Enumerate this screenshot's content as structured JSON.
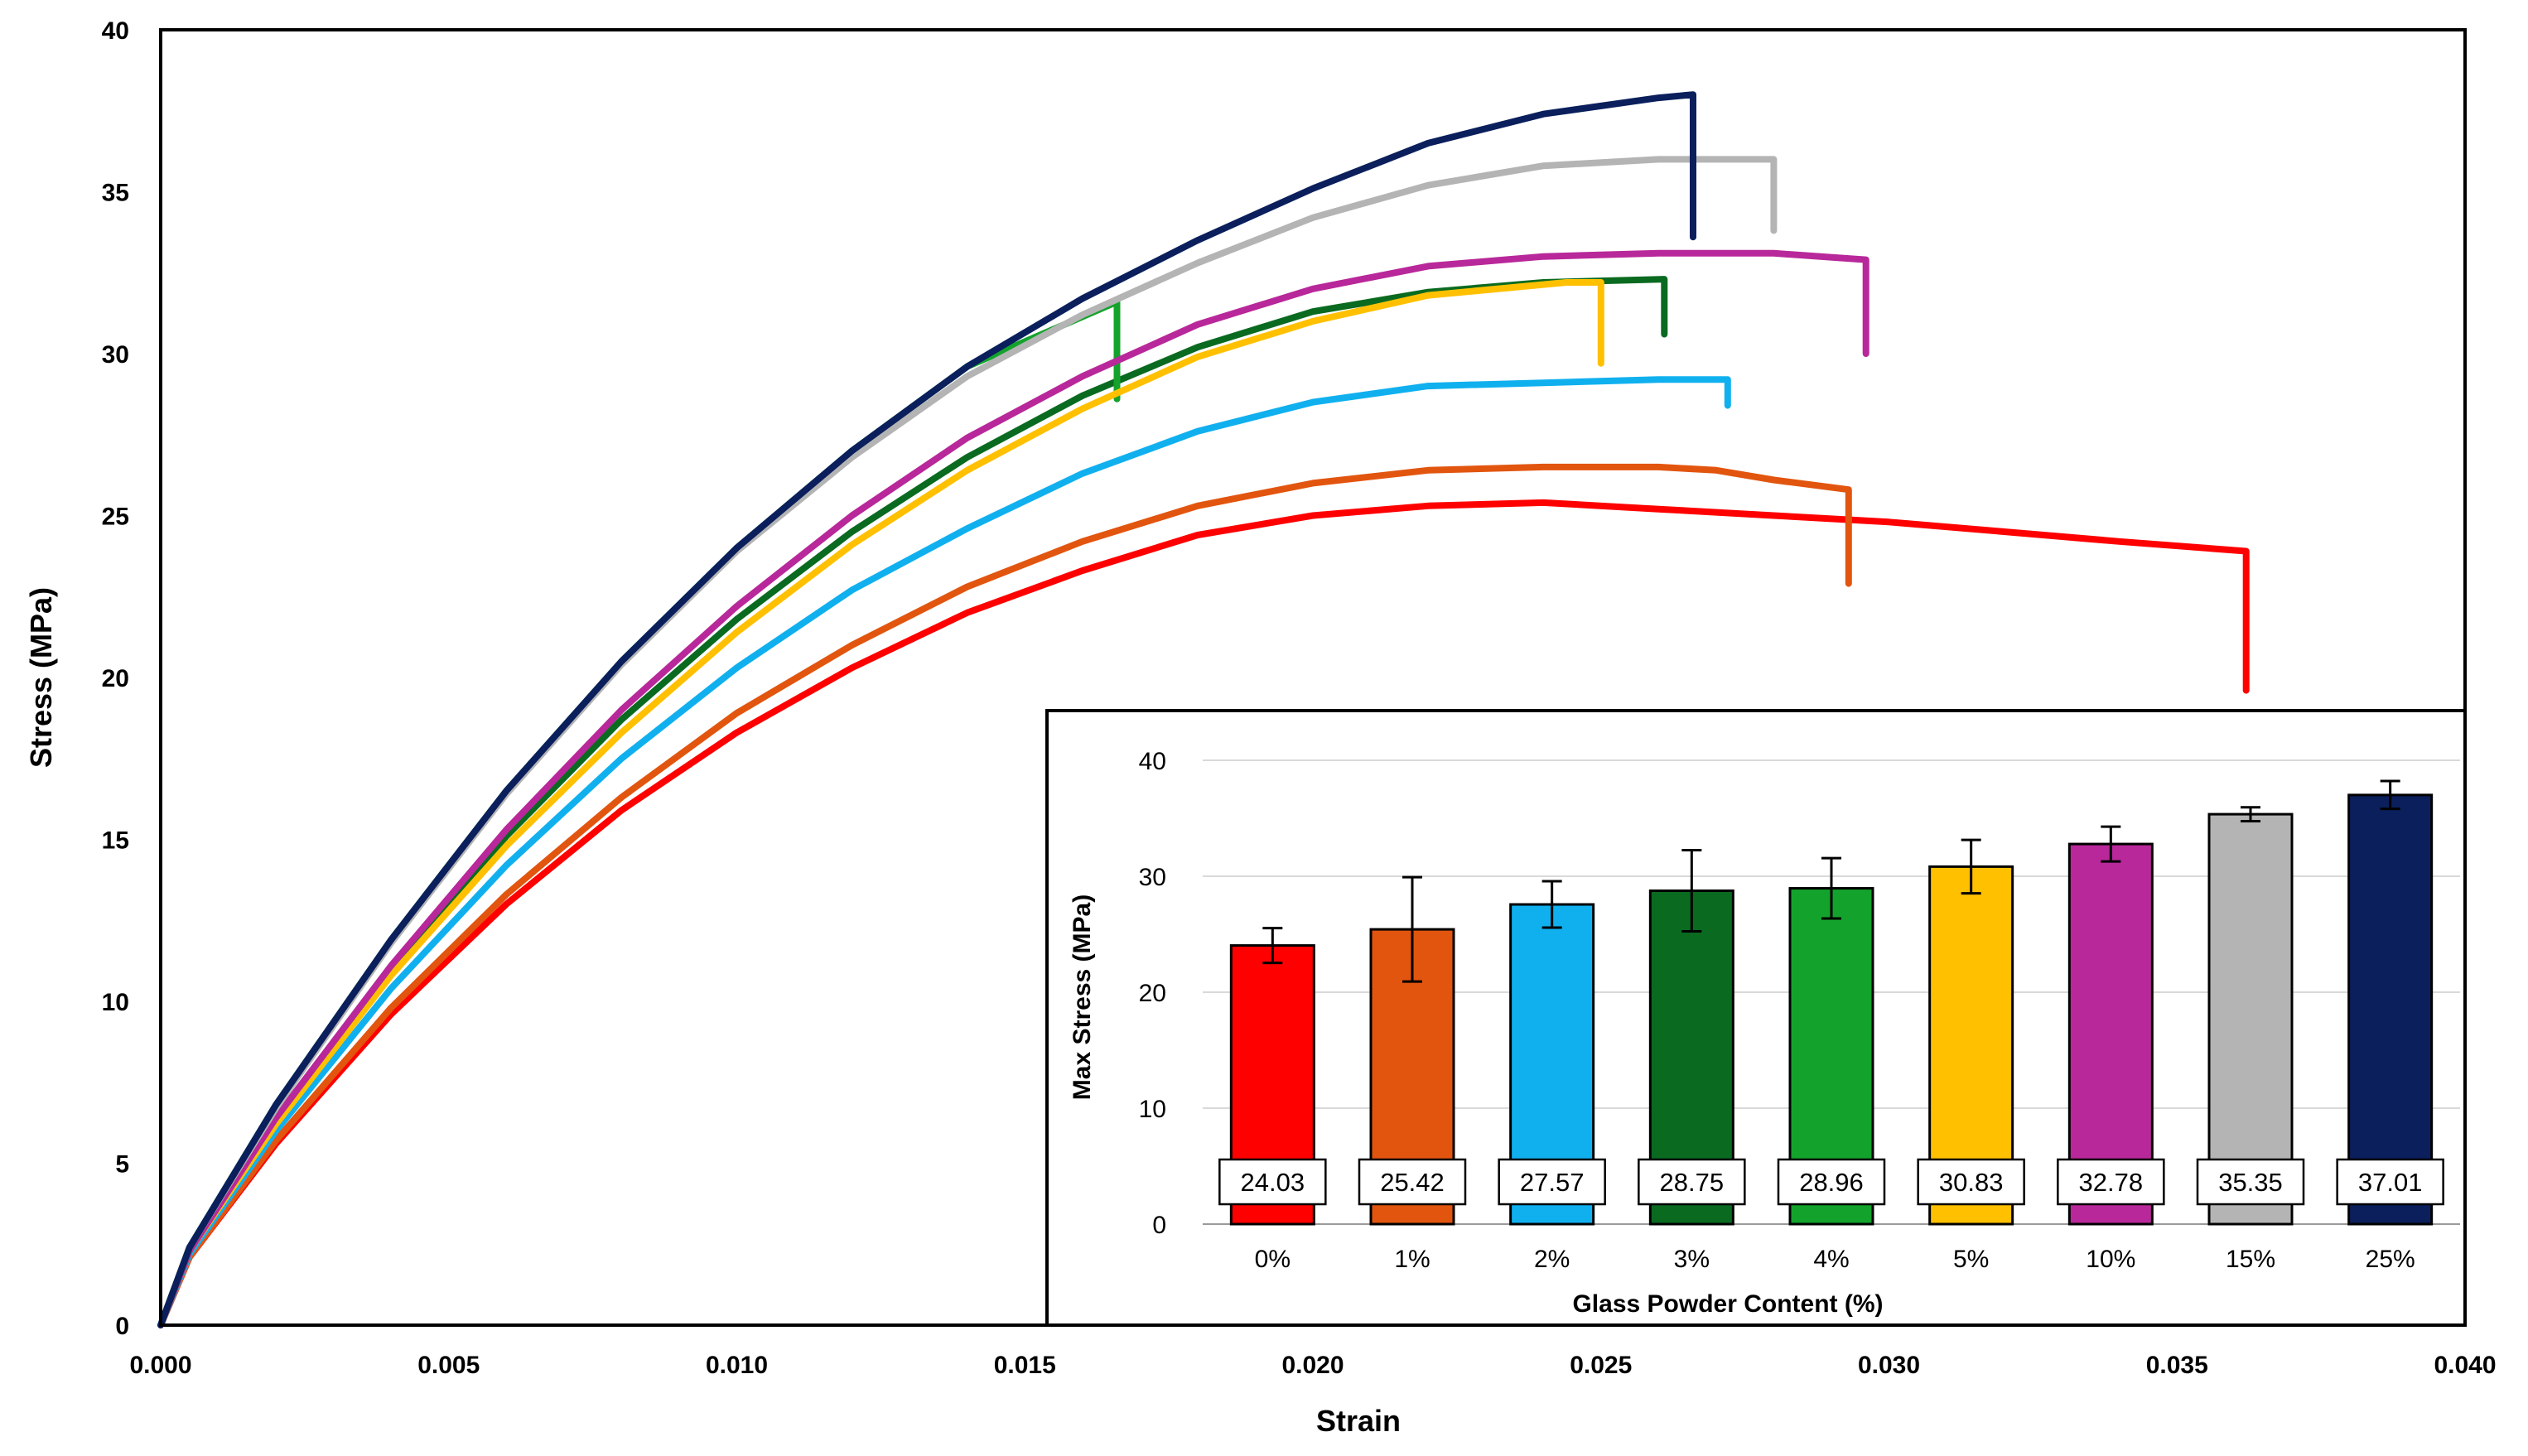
{
  "chart_data": [
    {
      "type": "line",
      "title": "",
      "xlabel": "Strain",
      "ylabel": "Stress (MPa)",
      "xlim": [
        0,
        0.04
      ],
      "ylim": [
        0,
        40
      ],
      "x_ticks": [
        "0.000",
        "0.005",
        "0.010",
        "0.015",
        "0.020",
        "0.025",
        "0.030",
        "0.035",
        "0.040"
      ],
      "y_ticks": [
        "0",
        "5",
        "10",
        "15",
        "20",
        "25",
        "30",
        "35",
        "40"
      ],
      "grid": false,
      "legend": "none",
      "series": [
        {
          "name": "0%",
          "color": "#ff0000",
          "points": [
            [
              0,
              0
            ],
            [
              0.0005,
              2.1
            ],
            [
              0.002,
              5.6
            ],
            [
              0.004,
              9.6
            ],
            [
              0.006,
              13.0
            ],
            [
              0.008,
              15.9
            ],
            [
              0.01,
              18.3
            ],
            [
              0.012,
              20.3
            ],
            [
              0.014,
              22.0
            ],
            [
              0.016,
              23.3
            ],
            [
              0.018,
              24.4
            ],
            [
              0.02,
              25.0
            ],
            [
              0.022,
              25.3
            ],
            [
              0.024,
              25.4
            ],
            [
              0.026,
              25.2
            ],
            [
              0.028,
              25.0
            ],
            [
              0.03,
              24.8
            ],
            [
              0.032,
              24.5
            ],
            [
              0.034,
              24.2
            ],
            [
              0.0362,
              23.9
            ],
            [
              0.0362,
              19.6
            ]
          ]
        },
        {
          "name": "1%",
          "color": "#e2550f",
          "points": [
            [
              0,
              0
            ],
            [
              0.0005,
              2.1
            ],
            [
              0.002,
              5.7
            ],
            [
              0.004,
              9.8
            ],
            [
              0.006,
              13.3
            ],
            [
              0.008,
              16.3
            ],
            [
              0.01,
              18.9
            ],
            [
              0.012,
              21.0
            ],
            [
              0.014,
              22.8
            ],
            [
              0.016,
              24.2
            ],
            [
              0.018,
              25.3
            ],
            [
              0.02,
              26.0
            ],
            [
              0.022,
              26.4
            ],
            [
              0.024,
              26.5
            ],
            [
              0.026,
              26.5
            ],
            [
              0.027,
              26.4
            ],
            [
              0.028,
              26.1
            ],
            [
              0.0293,
              25.8
            ],
            [
              0.0293,
              22.9
            ]
          ]
        },
        {
          "name": "2%",
          "color": "#10b0ef",
          "points": [
            [
              0,
              0
            ],
            [
              0.0005,
              2.2
            ],
            [
              0.002,
              6.0
            ],
            [
              0.004,
              10.4
            ],
            [
              0.006,
              14.2
            ],
            [
              0.008,
              17.5
            ],
            [
              0.01,
              20.3
            ],
            [
              0.012,
              22.7
            ],
            [
              0.014,
              24.6
            ],
            [
              0.016,
              26.3
            ],
            [
              0.018,
              27.6
            ],
            [
              0.02,
              28.5
            ],
            [
              0.022,
              29.0
            ],
            [
              0.024,
              29.1
            ],
            [
              0.026,
              29.2
            ],
            [
              0.0272,
              29.2
            ],
            [
              0.0272,
              28.4
            ]
          ]
        },
        {
          "name": "3%",
          "color": "#0a6a20",
          "points": [
            [
              0,
              0
            ],
            [
              0.0005,
              2.3
            ],
            [
              0.002,
              6.3
            ],
            [
              0.004,
              11.0
            ],
            [
              0.006,
              15.1
            ],
            [
              0.008,
              18.7
            ],
            [
              0.01,
              21.8
            ],
            [
              0.012,
              24.5
            ],
            [
              0.014,
              26.8
            ],
            [
              0.016,
              28.7
            ],
            [
              0.018,
              30.2
            ],
            [
              0.02,
              31.3
            ],
            [
              0.022,
              31.9
            ],
            [
              0.024,
              32.2
            ],
            [
              0.0261,
              32.3
            ],
            [
              0.0261,
              30.6
            ]
          ]
        },
        {
          "name": "4%",
          "color": "#13a32c",
          "points": [
            [
              0,
              0
            ],
            [
              0.0005,
              2.4
            ],
            [
              0.002,
              6.8
            ],
            [
              0.004,
              11.9
            ],
            [
              0.006,
              16.5
            ],
            [
              0.008,
              20.5
            ],
            [
              0.01,
              24.0
            ],
            [
              0.012,
              27.0
            ],
            [
              0.014,
              29.6
            ],
            [
              0.0166,
              31.6
            ],
            [
              0.0166,
              28.6
            ]
          ]
        },
        {
          "name": "5%",
          "color": "#ffc000",
          "points": [
            [
              0,
              0
            ],
            [
              0.0005,
              2.3
            ],
            [
              0.002,
              6.2
            ],
            [
              0.004,
              10.8
            ],
            [
              0.006,
              14.8
            ],
            [
              0.008,
              18.3
            ],
            [
              0.01,
              21.4
            ],
            [
              0.012,
              24.1
            ],
            [
              0.014,
              26.4
            ],
            [
              0.016,
              28.3
            ],
            [
              0.018,
              29.9
            ],
            [
              0.02,
              31.0
            ],
            [
              0.022,
              31.8
            ],
            [
              0.0244,
              32.2
            ],
            [
              0.025,
              32.2
            ],
            [
              0.025,
              29.7
            ]
          ]
        },
        {
          "name": "10%",
          "color": "#b8289a",
          "points": [
            [
              0,
              0
            ],
            [
              0.0005,
              2.3
            ],
            [
              0.002,
              6.4
            ],
            [
              0.004,
              11.1
            ],
            [
              0.006,
              15.3
            ],
            [
              0.008,
              19.0
            ],
            [
              0.01,
              22.2
            ],
            [
              0.012,
              25.0
            ],
            [
              0.014,
              27.4
            ],
            [
              0.016,
              29.3
            ],
            [
              0.018,
              30.9
            ],
            [
              0.02,
              32.0
            ],
            [
              0.022,
              32.7
            ],
            [
              0.024,
              33.0
            ],
            [
              0.026,
              33.1
            ],
            [
              0.028,
              33.1
            ],
            [
              0.0296,
              32.9
            ],
            [
              0.0296,
              30.0
            ]
          ]
        },
        {
          "name": "15%",
          "color": "#b4b4b4",
          "points": [
            [
              0,
              0
            ],
            [
              0.0005,
              2.4
            ],
            [
              0.002,
              6.7
            ],
            [
              0.004,
              11.8
            ],
            [
              0.006,
              16.4
            ],
            [
              0.008,
              20.4
            ],
            [
              0.01,
              23.9
            ],
            [
              0.012,
              26.8
            ],
            [
              0.014,
              29.3
            ],
            [
              0.016,
              31.2
            ],
            [
              0.018,
              32.8
            ],
            [
              0.02,
              34.2
            ],
            [
              0.022,
              35.2
            ],
            [
              0.024,
              35.8
            ],
            [
              0.026,
              36.0
            ],
            [
              0.028,
              36.0
            ],
            [
              0.028,
              33.8
            ]
          ]
        },
        {
          "name": "25%",
          "color": "#0a1f5c",
          "points": [
            [
              0,
              0
            ],
            [
              0.0005,
              2.4
            ],
            [
              0.002,
              6.8
            ],
            [
              0.004,
              11.9
            ],
            [
              0.006,
              16.5
            ],
            [
              0.008,
              20.5
            ],
            [
              0.01,
              24.0
            ],
            [
              0.012,
              27.0
            ],
            [
              0.014,
              29.6
            ],
            [
              0.016,
              31.7
            ],
            [
              0.018,
              33.5
            ],
            [
              0.02,
              35.1
            ],
            [
              0.022,
              36.5
            ],
            [
              0.024,
              37.4
            ],
            [
              0.026,
              37.9
            ],
            [
              0.0266,
              38.0
            ],
            [
              0.0266,
              33.6
            ]
          ]
        }
      ]
    },
    {
      "type": "bar",
      "title": "",
      "xlabel": "Glass Powder Content (%)",
      "ylabel": "Max Stress (MPa)",
      "ylim": [
        0,
        40
      ],
      "y_ticks": [
        "0",
        "10",
        "20",
        "30",
        "40"
      ],
      "grid": true,
      "legend": "none",
      "categories": [
        "0%",
        "1%",
        "2%",
        "3%",
        "4%",
        "5%",
        "10%",
        "15%",
        "25%"
      ],
      "values": [
        24.03,
        25.42,
        27.57,
        28.75,
        28.96,
        30.83,
        32.78,
        35.35,
        37.01
      ],
      "value_labels": [
        "24.03",
        "25.42",
        "27.57",
        "28.75",
        "28.96",
        "30.83",
        "32.78",
        "35.35",
        "37.01"
      ],
      "errors": [
        1.5,
        4.5,
        2.0,
        3.5,
        2.6,
        2.3,
        1.5,
        0.6,
        1.2
      ],
      "colors": [
        "#ff0000",
        "#e2550f",
        "#10b0ef",
        "#0a6a20",
        "#13a32c",
        "#ffc000",
        "#b8289a",
        "#b4b4b4",
        "#0a1f5c"
      ]
    }
  ]
}
